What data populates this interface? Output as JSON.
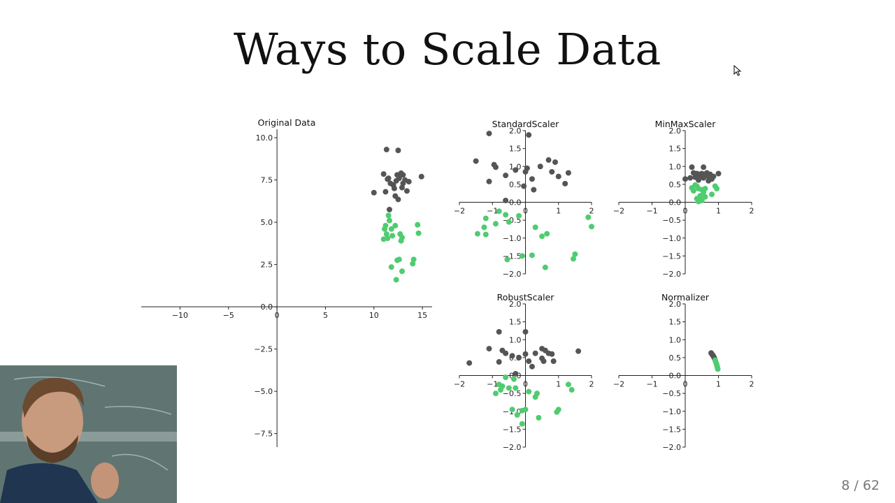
{
  "slide": {
    "title": "Ways to Scale Data",
    "page": "8 / 62"
  },
  "colors": {
    "class_a": "#555555",
    "class_b": "#4fcc70",
    "axis": "#222222"
  },
  "chart_data": [
    {
      "type": "scatter",
      "title": "Original Data",
      "xlim": [
        -14,
        16
      ],
      "ylim": [
        -8.3,
        10.5
      ],
      "xticks": [
        -10,
        -5,
        0,
        5,
        10,
        15
      ],
      "yticks": [
        -7.5,
        -5.0,
        -2.5,
        0.0,
        2.5,
        5.0,
        7.5,
        10.0
      ],
      "series": [
        {
          "color": "#555555",
          "points": [
            [
              11.3,
              9.3
            ],
            [
              12.5,
              9.25
            ],
            [
              11.0,
              7.85
            ],
            [
              11.5,
              7.6
            ],
            [
              12.0,
              7.2
            ],
            [
              12.3,
              7.45
            ],
            [
              12.6,
              7.6
            ],
            [
              12.8,
              7.9
            ],
            [
              13.0,
              7.8
            ],
            [
              13.2,
              7.5
            ],
            [
              11.7,
              7.3
            ],
            [
              12.9,
              7.05
            ],
            [
              12.2,
              6.55
            ],
            [
              12.5,
              6.35
            ],
            [
              13.4,
              6.85
            ],
            [
              14.9,
              7.7
            ],
            [
              10.0,
              6.75
            ],
            [
              11.2,
              6.8
            ],
            [
              13.0,
              7.3
            ],
            [
              12.1,
              7.0
            ],
            [
              11.6,
              5.75
            ],
            [
              13.6,
              7.4
            ],
            [
              12.4,
              7.8
            ],
            [
              11.4,
              7.55
            ]
          ]
        },
        {
          "color": "#4fcc70",
          "points": [
            [
              11.5,
              5.4
            ],
            [
              11.6,
              5.1
            ],
            [
              11.2,
              4.8
            ],
            [
              11.1,
              4.6
            ],
            [
              11.3,
              4.3
            ],
            [
              11.0,
              4.0
            ],
            [
              11.4,
              4.05
            ],
            [
              11.8,
              4.6
            ],
            [
              12.2,
              4.8
            ],
            [
              12.7,
              4.3
            ],
            [
              12.8,
              3.9
            ],
            [
              12.9,
              4.1
            ],
            [
              14.5,
              4.85
            ],
            [
              14.6,
              4.35
            ],
            [
              12.4,
              2.75
            ],
            [
              12.6,
              2.8
            ],
            [
              14.1,
              2.8
            ],
            [
              14.0,
              2.55
            ],
            [
              11.8,
              2.35
            ],
            [
              12.9,
              2.1
            ],
            [
              12.3,
              1.6
            ],
            [
              11.9,
              4.2
            ]
          ]
        }
      ]
    },
    {
      "type": "scatter",
      "title": "StandardScaler",
      "xlim": [
        -2,
        2
      ],
      "ylim": [
        -2,
        2
      ],
      "xticks": [
        -2,
        -1,
        0,
        1,
        2
      ],
      "yticks": [
        -2.0,
        -1.5,
        -1.0,
        -0.5,
        0.0,
        0.5,
        1.0,
        1.5,
        2.0
      ],
      "series": [
        {
          "color": "#555555",
          "points": [
            [
              -1.1,
              1.92
            ],
            [
              0.1,
              1.88
            ],
            [
              -1.5,
              1.15
            ],
            [
              -0.95,
              1.05
            ],
            [
              -0.9,
              0.98
            ],
            [
              -0.6,
              0.75
            ],
            [
              -0.3,
              0.9
            ],
            [
              0.0,
              0.85
            ],
            [
              0.2,
              0.65
            ],
            [
              0.45,
              1.0
            ],
            [
              0.7,
              1.18
            ],
            [
              0.9,
              1.12
            ],
            [
              0.8,
              0.85
            ],
            [
              1.0,
              0.72
            ],
            [
              1.3,
              0.82
            ],
            [
              1.2,
              0.52
            ],
            [
              -1.1,
              0.58
            ],
            [
              0.25,
              0.35
            ],
            [
              -0.05,
              0.45
            ],
            [
              0.05,
              0.95
            ],
            [
              -0.6,
              0.05
            ]
          ]
        },
        {
          "color": "#4fcc70",
          "points": [
            [
              -0.8,
              -0.25
            ],
            [
              -0.6,
              -0.35
            ],
            [
              -1.2,
              -0.45
            ],
            [
              -1.25,
              -0.7
            ],
            [
              -1.45,
              -0.88
            ],
            [
              -1.2,
              -0.9
            ],
            [
              -0.9,
              -0.6
            ],
            [
              -0.5,
              -0.55
            ],
            [
              -0.2,
              -0.38
            ],
            [
              0.3,
              -0.7
            ],
            [
              0.5,
              -0.95
            ],
            [
              0.65,
              -0.88
            ],
            [
              1.9,
              -0.42
            ],
            [
              2.0,
              -0.68
            ],
            [
              -0.55,
              -1.6
            ],
            [
              0.2,
              -1.48
            ],
            [
              -0.1,
              -1.5
            ],
            [
              1.5,
              -1.45
            ],
            [
              1.45,
              -1.58
            ],
            [
              0.6,
              -1.82
            ]
          ]
        }
      ]
    },
    {
      "type": "scatter",
      "title": "MinMaxScaler",
      "xlim": [
        -2,
        2
      ],
      "ylim": [
        -2,
        2
      ],
      "xticks": [
        -2,
        -1,
        0,
        1,
        2
      ],
      "yticks": [
        -2.0,
        -1.5,
        -1.0,
        -0.5,
        0.0,
        0.5,
        1.0,
        1.5,
        2.0
      ],
      "series": [
        {
          "color": "#555555",
          "points": [
            [
              0.2,
              0.98
            ],
            [
              0.55,
              0.98
            ],
            [
              0.25,
              0.82
            ],
            [
              0.35,
              0.8
            ],
            [
              0.45,
              0.78
            ],
            [
              0.5,
              0.8
            ],
            [
              0.6,
              0.75
            ],
            [
              0.65,
              0.82
            ],
            [
              0.7,
              0.72
            ],
            [
              0.75,
              0.78
            ],
            [
              0.85,
              0.72
            ],
            [
              1.0,
              0.8
            ],
            [
              0.0,
              0.65
            ],
            [
              0.15,
              0.68
            ],
            [
              0.3,
              0.7
            ],
            [
              0.4,
              0.62
            ],
            [
              0.55,
              0.68
            ],
            [
              0.7,
              0.6
            ],
            [
              0.8,
              0.65
            ],
            [
              0.45,
              0.7
            ]
          ]
        },
        {
          "color": "#4fcc70",
          "points": [
            [
              0.3,
              0.48
            ],
            [
              0.35,
              0.45
            ],
            [
              0.2,
              0.4
            ],
            [
              0.4,
              0.38
            ],
            [
              0.25,
              0.32
            ],
            [
              0.5,
              0.35
            ],
            [
              0.55,
              0.28
            ],
            [
              0.6,
              0.38
            ],
            [
              0.9,
              0.45
            ],
            [
              0.95,
              0.38
            ],
            [
              0.45,
              0.18
            ],
            [
              0.6,
              0.15
            ],
            [
              0.8,
              0.22
            ],
            [
              0.35,
              0.1
            ],
            [
              0.5,
              0.05
            ],
            [
              0.4,
              0.02
            ]
          ]
        }
      ]
    },
    {
      "type": "scatter",
      "title": "RobustScaler",
      "xlim": [
        -2,
        2
      ],
      "ylim": [
        -2,
        2
      ],
      "xticks": [
        -2,
        -1,
        0,
        1,
        2
      ],
      "yticks": [
        -2.0,
        -1.5,
        -1.0,
        -0.5,
        0.0,
        0.5,
        1.0,
        1.5,
        2.0
      ],
      "series": [
        {
          "color": "#555555",
          "points": [
            [
              -0.8,
              1.22
            ],
            [
              0.0,
              1.22
            ],
            [
              -1.1,
              0.75
            ],
            [
              -0.7,
              0.7
            ],
            [
              -0.6,
              0.62
            ],
            [
              -0.4,
              0.55
            ],
            [
              -0.2,
              0.5
            ],
            [
              0.0,
              0.6
            ],
            [
              0.1,
              0.4
            ],
            [
              0.3,
              0.62
            ],
            [
              0.5,
              0.75
            ],
            [
              0.6,
              0.7
            ],
            [
              0.7,
              0.62
            ],
            [
              0.8,
              0.6
            ],
            [
              0.5,
              0.48
            ],
            [
              0.55,
              0.4
            ],
            [
              0.85,
              0.4
            ],
            [
              1.6,
              0.68
            ],
            [
              -1.7,
              0.35
            ],
            [
              -0.8,
              0.38
            ],
            [
              0.2,
              0.25
            ],
            [
              -0.3,
              0.05
            ]
          ]
        },
        {
          "color": "#4fcc70",
          "points": [
            [
              -0.6,
              -0.05
            ],
            [
              -0.35,
              -0.1
            ],
            [
              -0.8,
              -0.25
            ],
            [
              -0.7,
              -0.3
            ],
            [
              -0.9,
              -0.5
            ],
            [
              -0.75,
              -0.4
            ],
            [
              -0.5,
              -0.35
            ],
            [
              -0.3,
              -0.35
            ],
            [
              0.1,
              -0.45
            ],
            [
              0.35,
              -0.5
            ],
            [
              0.3,
              -0.6
            ],
            [
              1.3,
              -0.25
            ],
            [
              1.4,
              -0.4
            ],
            [
              -0.4,
              -0.95
            ],
            [
              0.0,
              -0.95
            ],
            [
              -0.1,
              -0.98
            ],
            [
              1.0,
              -0.95
            ],
            [
              0.95,
              -1.02
            ],
            [
              -0.25,
              -1.1
            ],
            [
              0.4,
              -1.18
            ],
            [
              -0.1,
              -1.35
            ]
          ]
        }
      ]
    },
    {
      "type": "scatter",
      "title": "Normalizer",
      "xlim": [
        -2,
        2
      ],
      "ylim": [
        -2,
        2
      ],
      "xticks": [
        -2,
        -1,
        0,
        1,
        2
      ],
      "yticks": [
        -2.0,
        -1.5,
        -1.0,
        -0.5,
        0.0,
        0.5,
        1.0,
        1.5,
        2.0
      ],
      "series": [
        {
          "color": "#555555",
          "points": [
            [
              0.78,
              0.63
            ],
            [
              0.8,
              0.6
            ],
            [
              0.82,
              0.58
            ],
            [
              0.84,
              0.55
            ],
            [
              0.86,
              0.52
            ],
            [
              0.88,
              0.48
            ]
          ]
        },
        {
          "color": "#4fcc70",
          "points": [
            [
              0.9,
              0.43
            ],
            [
              0.92,
              0.38
            ],
            [
              0.94,
              0.33
            ],
            [
              0.95,
              0.29
            ],
            [
              0.96,
              0.26
            ],
            [
              0.97,
              0.22
            ],
            [
              0.98,
              0.18
            ]
          ]
        }
      ]
    }
  ]
}
